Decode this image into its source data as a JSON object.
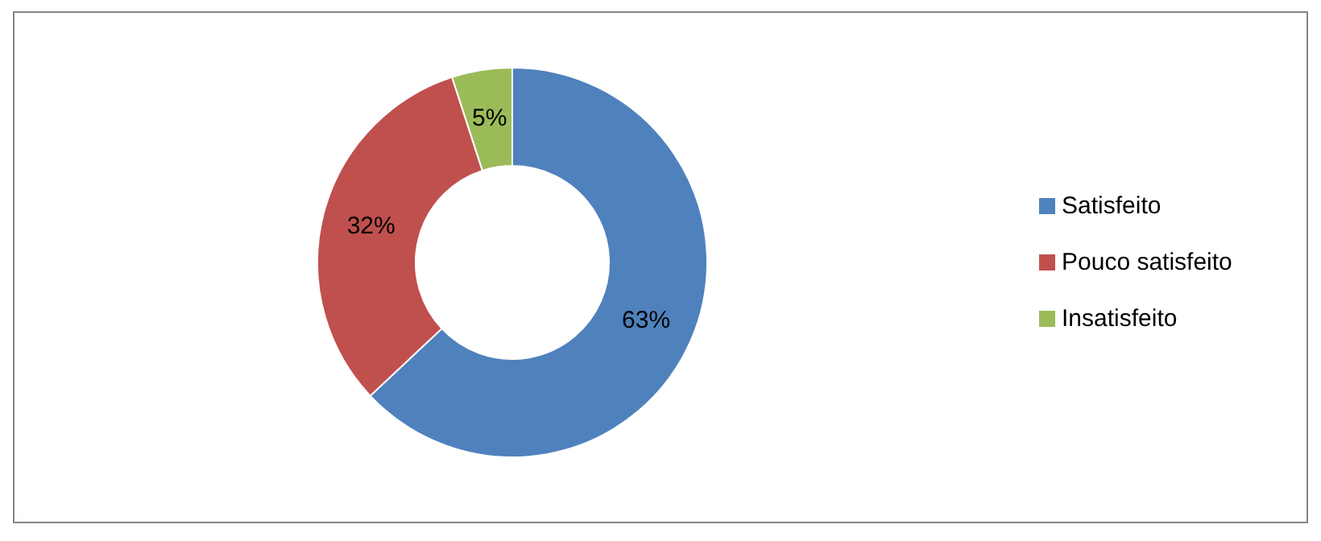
{
  "chart_data": {
    "type": "donut",
    "categories": [
      "Satisfeito",
      "Pouco satisfeito",
      "Insatisfeito"
    ],
    "values": [
      63,
      32,
      5
    ],
    "value_labels": [
      "63%",
      "32%",
      "5%"
    ],
    "colors": [
      "#4f81bd",
      "#c0504d",
      "#9bbb59"
    ],
    "legend": "right"
  }
}
